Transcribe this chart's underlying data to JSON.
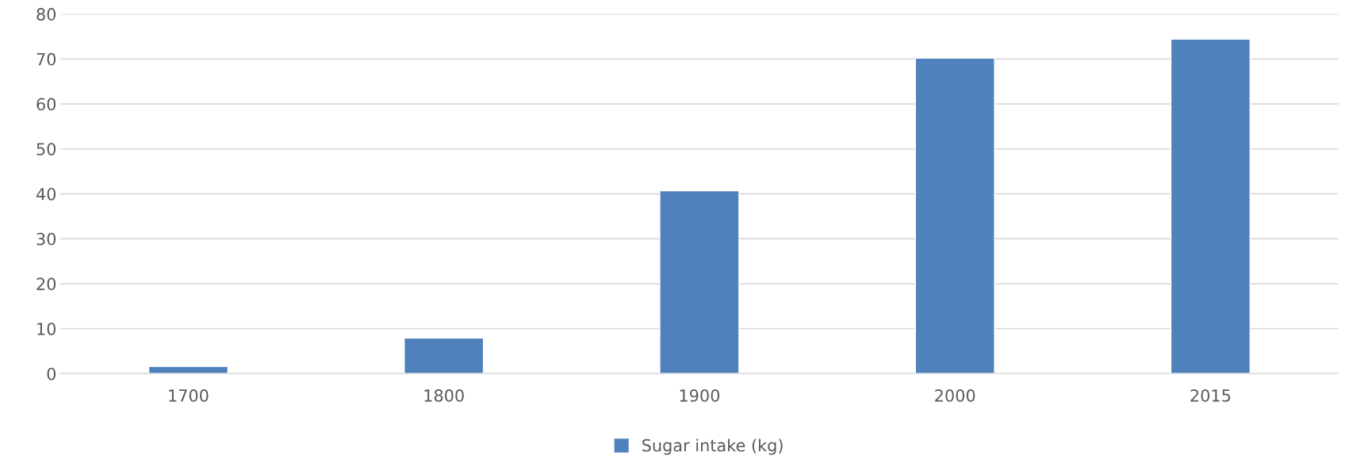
{
  "chart_data": {
    "type": "bar",
    "categories": [
      "1700",
      "1800",
      "1900",
      "2000",
      "2015"
    ],
    "series": [
      {
        "name": "Sugar intake (kg)",
        "color": "#4f81bd",
        "values": [
          1.6,
          7.9,
          40.7,
          70.2,
          74.4
        ]
      }
    ],
    "ylim": [
      0,
      80
    ],
    "yticks": [
      0,
      10,
      20,
      30,
      40,
      50,
      60,
      70,
      80
    ],
    "grid": "y",
    "legend": "bottom"
  }
}
